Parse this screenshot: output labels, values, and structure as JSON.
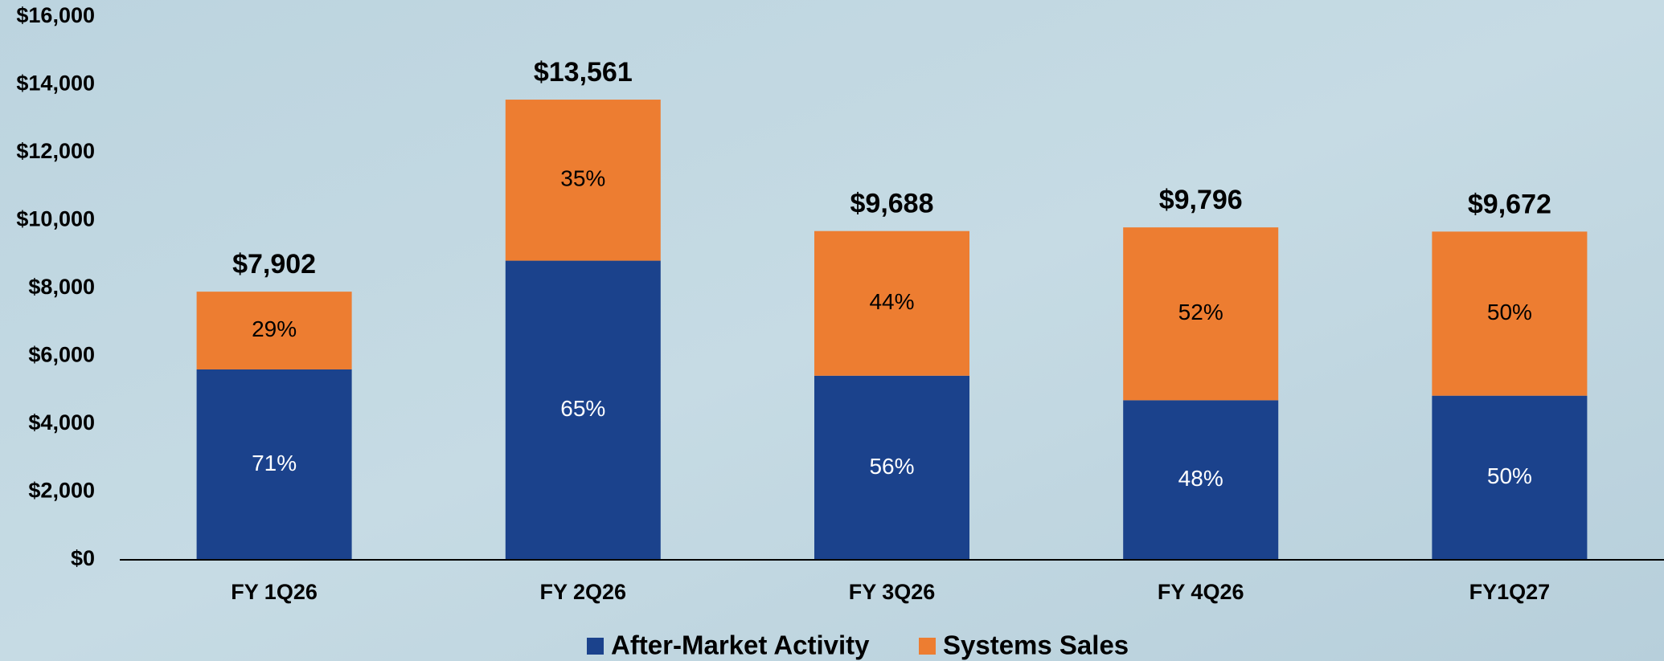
{
  "chart_data": {
    "type": "stacked_bar",
    "categories": [
      "FY 1Q26",
      "FY 2Q26",
      "FY 3Q26",
      "FY 4Q26",
      "FY1Q27"
    ],
    "series": [
      {
        "name": "After-Market Activity",
        "color": "#1b428c",
        "values": [
          5610,
          8815,
          5425,
          4702,
          4836
        ],
        "share_labels": [
          "71%",
          "65%",
          "56%",
          "48%",
          "50%"
        ]
      },
      {
        "name": "Systems Sales",
        "color": "#ed7d31",
        "values": [
          2292,
          4746,
          4263,
          5094,
          4836
        ],
        "share_labels": [
          "29%",
          "35%",
          "44%",
          "52%",
          "50%"
        ]
      }
    ],
    "totals": [
      7902,
      13561,
      9688,
      9796,
      9672
    ],
    "total_labels": [
      "$7,902",
      "$13,561",
      "$9,688",
      "$9,796",
      "$9,672"
    ],
    "ylim": [
      0,
      16000
    ],
    "yticks": [
      {
        "value": 0,
        "label": "$0"
      },
      {
        "value": 2000,
        "label": "$2,000"
      },
      {
        "value": 4000,
        "label": "$4,000"
      },
      {
        "value": 6000,
        "label": "$6,000"
      },
      {
        "value": 8000,
        "label": "$8,000"
      },
      {
        "value": 10000,
        "label": "$10,000"
      },
      {
        "value": 12000,
        "label": "$12,000"
      },
      {
        "value": 14000,
        "label": "$14,000"
      },
      {
        "value": 16000,
        "label": "$16,000"
      }
    ],
    "legend": "bottom"
  }
}
